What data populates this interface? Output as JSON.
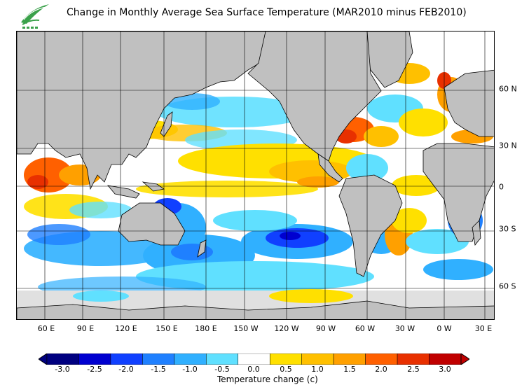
{
  "title": "Change in Monthly Average Sea Surface Temperature (MAR2010 minus FEB2010)",
  "logo_icon": "hko-leaf-logo-icon",
  "map": {
    "region": "Global ocean, 40E to 40E (wrapped), 80S to 80N",
    "land_color": "#c0c0c0",
    "ice_color": "#e0e0e0",
    "lon_labels": [
      "60 E",
      "90 E",
      "120 E",
      "150 E",
      "180 E",
      "150 W",
      "120 W",
      "90 W",
      "60 W",
      "30 W",
      "0 W",
      "30 E"
    ],
    "lat_labels": [
      "60 N",
      "30 N",
      "0",
      "30 S",
      "60 S"
    ]
  },
  "colorbar": {
    "label": "Temperature change  (c)",
    "ticks": [
      "-3.0",
      "-2.5",
      "-2.0",
      "-1.5",
      "-1.0",
      "-0.5",
      "0.0",
      "0.5",
      "1.0",
      "1.5",
      "2.0",
      "2.5",
      "3.0"
    ],
    "colors": [
      "#000080",
      "#0000d0",
      "#1040ff",
      "#1f80ff",
      "#30b0ff",
      "#60e0ff",
      "#ffffff",
      "#ffe000",
      "#ffc000",
      "#ffa000",
      "#ff6000",
      "#e83000",
      "#c00000"
    ]
  }
}
